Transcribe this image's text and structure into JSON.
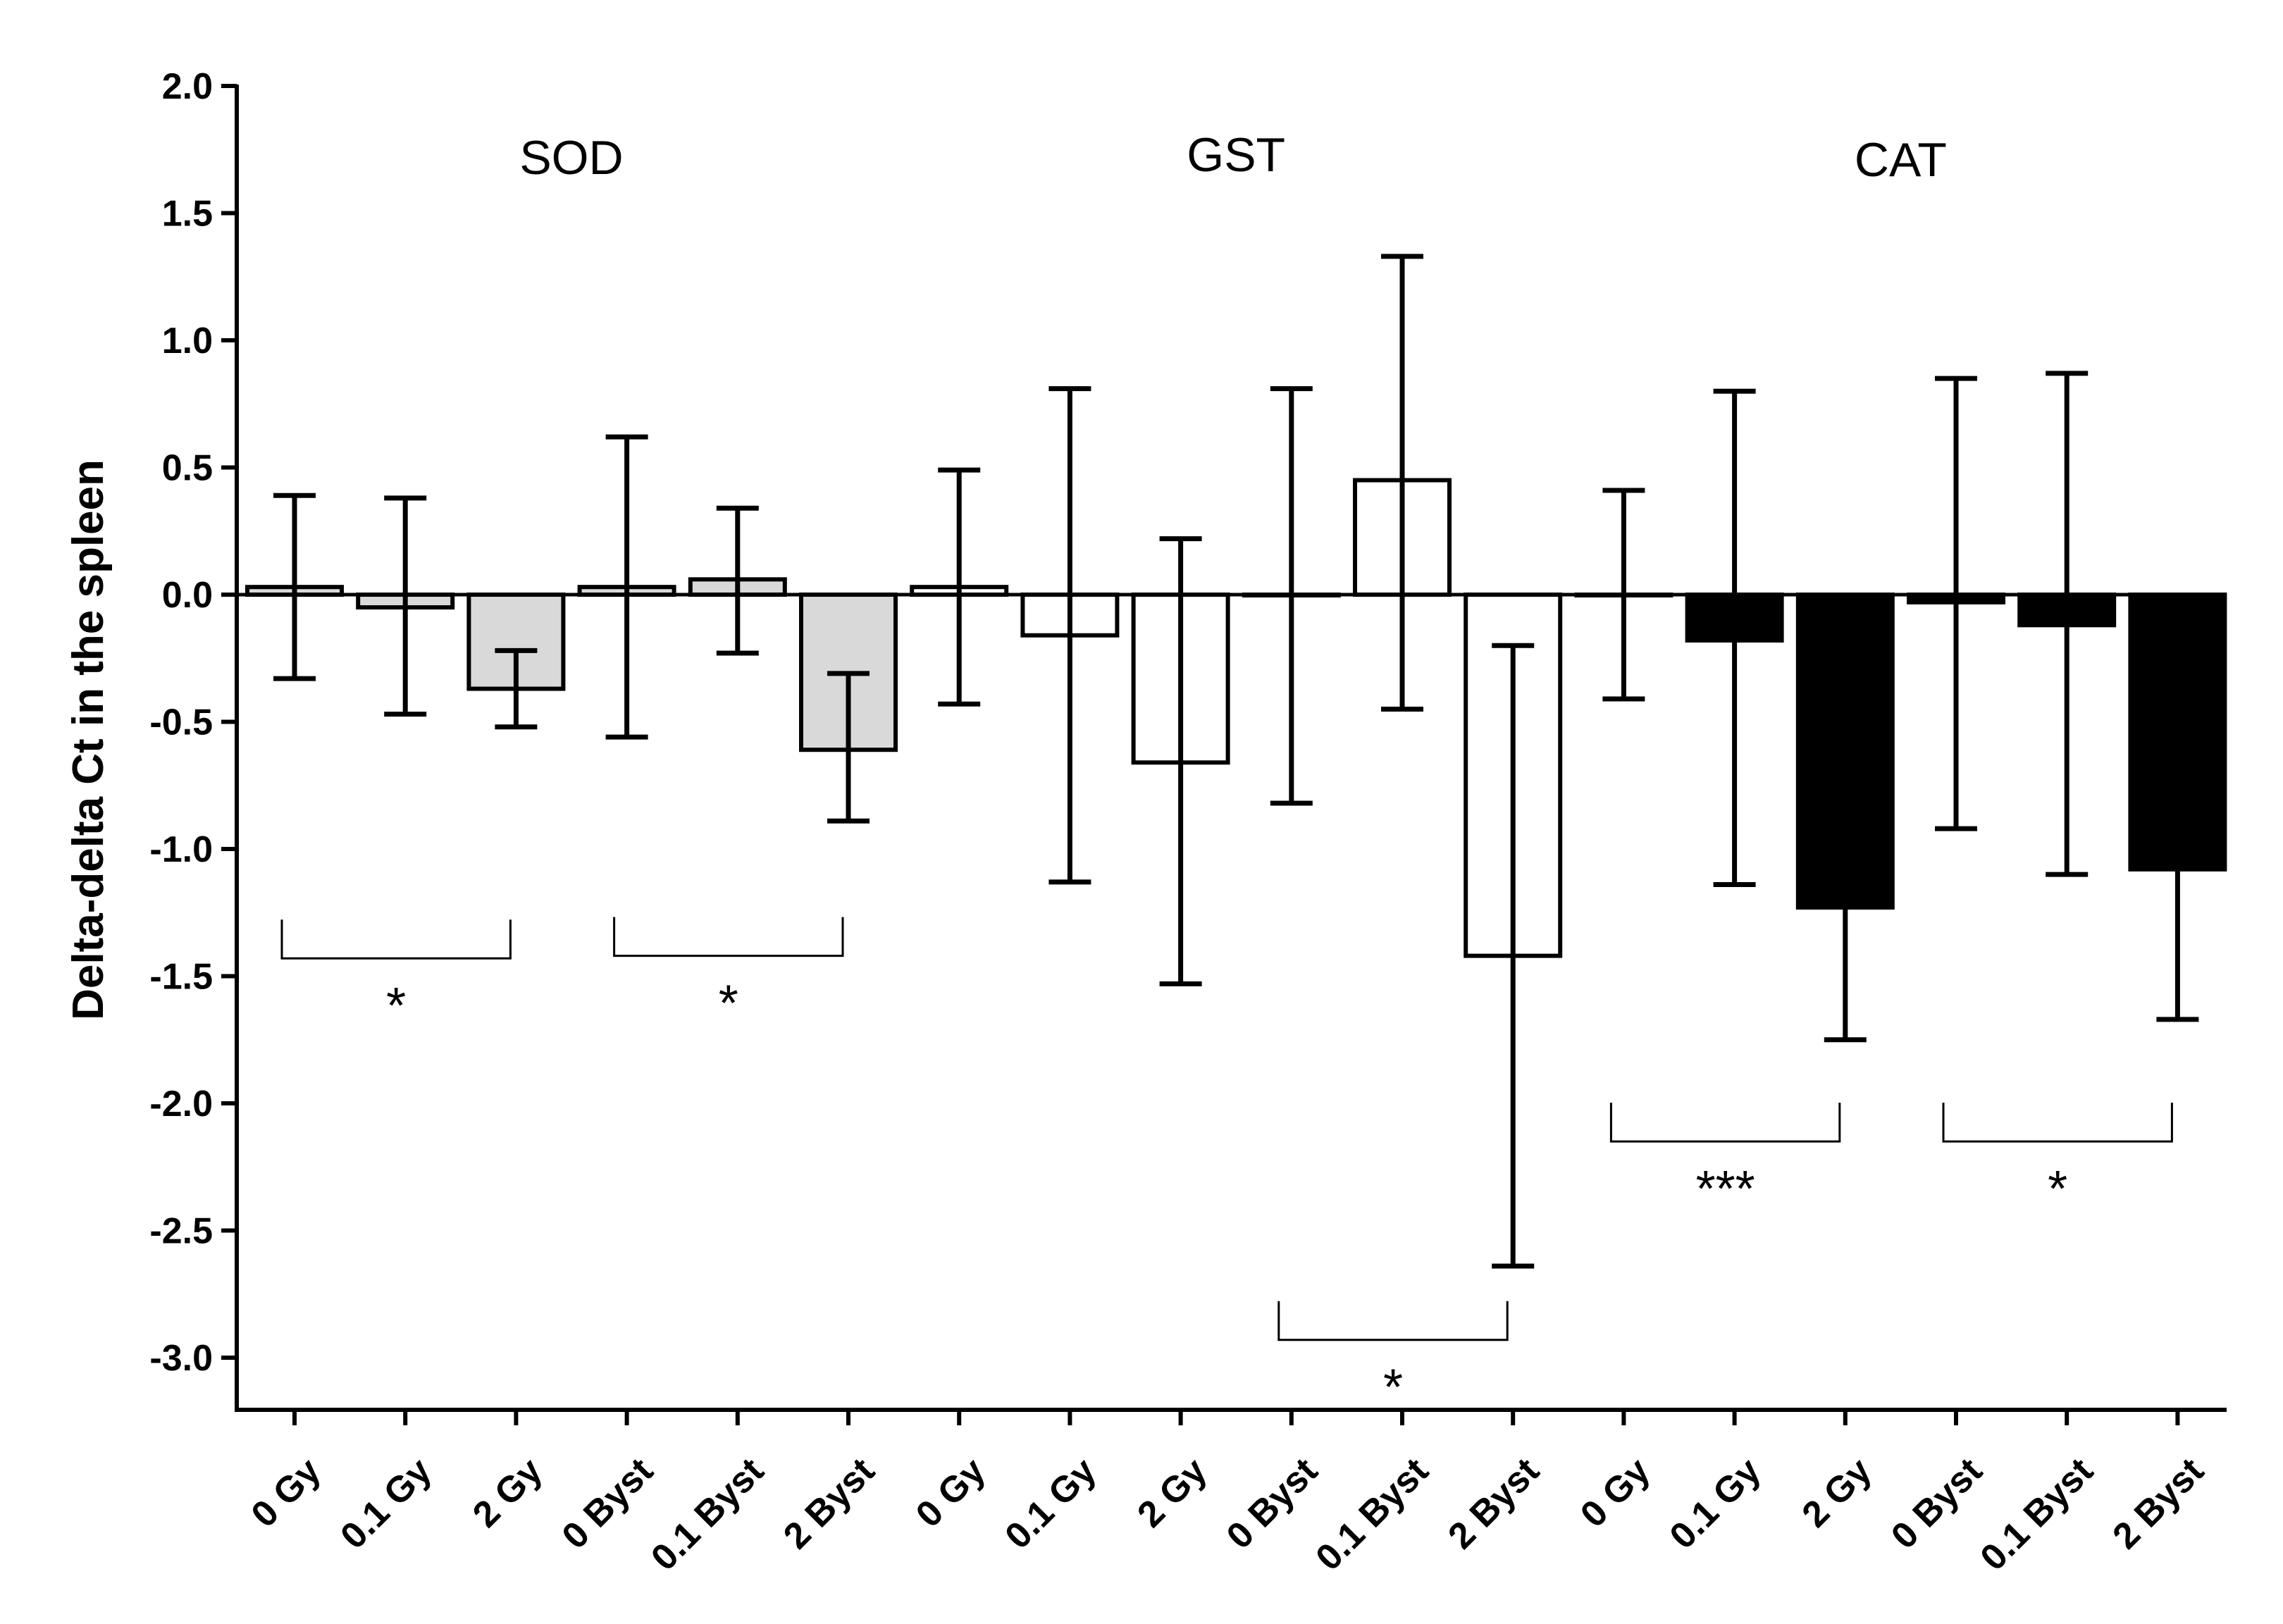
{
  "chart_data": {
    "type": "bar",
    "title": "",
    "ylabel": "Delta-delta Ct in the spleen",
    "xlabel": "",
    "ylim": [
      -3.2,
      2.0
    ],
    "yticks": [
      2.0,
      1.5,
      1.0,
      0.5,
      0.0,
      -0.5,
      -1.0,
      -1.5,
      -2.0,
      -2.5,
      -3.0
    ],
    "ytick_labels": [
      "2.0",
      "1.5",
      "1.0",
      "0.5",
      "0.0",
      "-0.5",
      "-1.0",
      "-1.5",
      "-2.0",
      "-2.5",
      "-3.0"
    ],
    "categories": [
      "0 Gy",
      "0.1 Gy",
      "2 Gy",
      "0 Byst",
      "0.1 Byst",
      "2 Byst"
    ],
    "groups": [
      {
        "name": "SOD",
        "color": "#d9d9d9",
        "values": [
          0.03,
          -0.05,
          -0.37,
          0.03,
          0.06,
          -0.61
        ],
        "err_low": [
          -0.33,
          -0.47,
          -0.52,
          -0.56,
          -0.23,
          -0.89
        ],
        "err_high": [
          0.39,
          0.38,
          -0.22,
          0.62,
          0.34,
          -0.31
        ],
        "brackets": [
          {
            "from": 0,
            "to": 2,
            "y": -1.43,
            "label": "*"
          },
          {
            "from": 3,
            "to": 5,
            "y": -1.42,
            "label": "*"
          }
        ]
      },
      {
        "name": "GST",
        "color": "#ffffff",
        "values": [
          0.03,
          -0.16,
          -0.66,
          0.0,
          0.45,
          -1.42
        ],
        "err_low": [
          -0.43,
          -1.13,
          -1.53,
          -0.82,
          -0.45,
          -2.64
        ],
        "err_high": [
          0.49,
          0.81,
          0.22,
          0.81,
          1.33,
          -0.2
        ],
        "brackets": [
          {
            "from": 3,
            "to": 5,
            "y": -2.93,
            "label": "*"
          }
        ]
      },
      {
        "name": "CAT",
        "color": "#000000",
        "values": [
          0.0,
          -0.18,
          -1.23,
          -0.03,
          -0.12,
          -1.08
        ],
        "err_low": [
          -0.41,
          -1.14,
          -1.75,
          -0.92,
          -1.1,
          -1.67
        ],
        "err_high": [
          0.41,
          0.8,
          -0.7,
          0.85,
          0.87,
          -0.49
        ],
        "brackets": [
          {
            "from": 0,
            "to": 2,
            "y": -2.15,
            "label": "***"
          },
          {
            "from": 3,
            "to": 5,
            "y": -2.15,
            "label": "*"
          }
        ]
      }
    ]
  }
}
